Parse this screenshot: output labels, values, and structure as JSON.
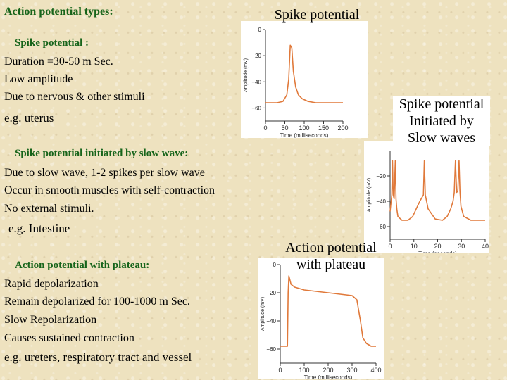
{
  "left_text": {
    "heading": "Action potential types:",
    "spike": {
      "title": "Spike potential :",
      "lines": [
        "Duration =30-50 m Sec.",
        "Low amplitude",
        "Due to nervous & other stimuli"
      ],
      "example": "e.g. uterus"
    },
    "slow_wave": {
      "title": "Spike potential initiated by slow wave:",
      "lines": [
        "Due to slow wave, 1-2 spikes per slow wave",
        "Occur in smooth muscles with self-contraction",
        "No external stimuli."
      ],
      "example": "e.g. Intestine"
    },
    "plateau": {
      "title": "Action  potential with plateau:",
      "lines": [
        "Rapid depolarization",
        "Remain depolarized for 100-1000 m Sec.",
        "Slow Repolarization",
        "Causes sustained contraction"
      ],
      "example": "e.g. ureters, respiratory tract and vessel"
    }
  },
  "figure_titles": {
    "spike": "Spike potential",
    "slow_wave": [
      "Spike potential",
      "Initiated by",
      "Slow waves"
    ],
    "plateau": [
      "Action potential",
      "with plateau"
    ]
  },
  "chart_data": [
    {
      "type": "line",
      "id": "spike",
      "ylabel": "Amplitude (mV)",
      "xlabel": "Time (milliseconds)",
      "xlim": [
        0,
        200
      ],
      "ylim": [
        -70,
        0
      ],
      "xticks": [
        0,
        50,
        100,
        150,
        200
      ],
      "yticks": [
        0,
        -20,
        -40,
        -60
      ],
      "line_color": "#e0793a",
      "x": [
        0,
        30,
        45,
        55,
        60,
        64,
        68,
        72,
        78,
        85,
        95,
        110,
        130,
        160,
        200
      ],
      "y": [
        -56,
        -56,
        -55,
        -50,
        -38,
        -12,
        -14,
        -32,
        -44,
        -50,
        -53,
        -55,
        -56,
        -56,
        -56
      ]
    },
    {
      "type": "line",
      "id": "slow_wave",
      "ylabel": "Amplitude (mV)",
      "xlabel": "Time (seconds)",
      "xlim": [
        0,
        40
      ],
      "ylim": [
        -70,
        0
      ],
      "xticks": [
        0,
        10,
        20,
        30,
        40
      ],
      "yticks": [
        -20,
        -40,
        -60
      ],
      "line_color": "#e0793a",
      "x": [
        0,
        0.7,
        1.0,
        1.3,
        1.7,
        2.2,
        2.5,
        2.8,
        3.3,
        5,
        7.5,
        9.5,
        11,
        12.5,
        14,
        14.4,
        14.8,
        16,
        19,
        22,
        24,
        25.5,
        26.5,
        27,
        27.5,
        28,
        28.5,
        29,
        29.4,
        29.8,
        31,
        34,
        37,
        40
      ],
      "y": [
        -48,
        -35,
        -8,
        -35,
        -38,
        -8,
        -38,
        -46,
        -52,
        -55,
        -55,
        -52,
        -46,
        -40,
        -35,
        -8,
        -35,
        -46,
        -54,
        -55,
        -52,
        -46,
        -40,
        -33,
        -8,
        -33,
        -32,
        -8,
        -32,
        -44,
        -52,
        -55,
        -55,
        -55
      ]
    },
    {
      "type": "line",
      "id": "plateau",
      "ylabel": "Amplitude (mV)",
      "xlabel": "Time (milliseconds)",
      "xlim": [
        0,
        400
      ],
      "ylim": [
        -70,
        0
      ],
      "xticks": [
        0,
        100,
        200,
        300,
        400
      ],
      "yticks": [
        0,
        -20,
        -40,
        -60
      ],
      "line_color": "#e0793a",
      "x": [
        0,
        10,
        30,
        33,
        36,
        45,
        60,
        100,
        150,
        200,
        250,
        300,
        320,
        335,
        345,
        360,
        380,
        400
      ],
      "y": [
        -58,
        -58,
        -58,
        -20,
        -8,
        -14,
        -16,
        -18,
        -19,
        -20,
        -21,
        -22,
        -25,
        -40,
        -52,
        -56,
        -58,
        -58
      ]
    }
  ]
}
